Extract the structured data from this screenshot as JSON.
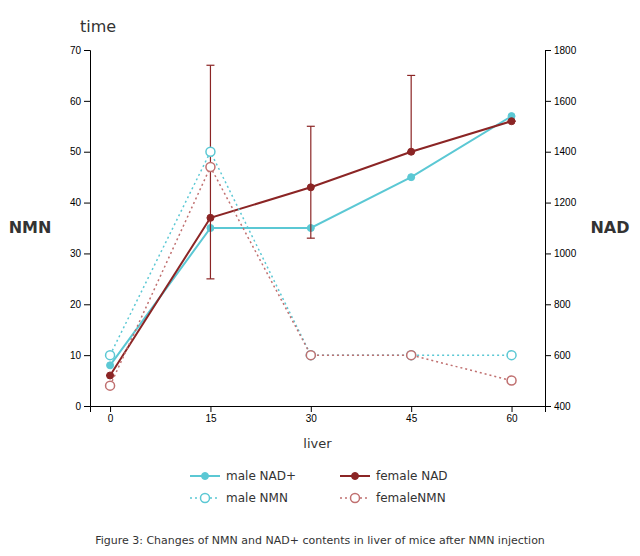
{
  "chart_data": {
    "type": "line",
    "title": "time",
    "xlabel": "liver",
    "ylabel": "NMN",
    "y2label": "NAD",
    "caption": "Figure 3: Changes of NMN and NAD+ contents in liver of mice after NMN injection",
    "x": [
      0,
      15,
      30,
      45,
      60
    ],
    "xlim": [
      -3,
      65
    ],
    "xticks": [
      0,
      15,
      30,
      45,
      60
    ],
    "ylim": [
      0,
      70
    ],
    "yticks": [
      0,
      10,
      20,
      30,
      40,
      50,
      60,
      70
    ],
    "y2lim": [
      400,
      1800
    ],
    "y2ticks": [
      400,
      600,
      800,
      1000,
      1200,
      1400,
      1600,
      1800
    ],
    "grid": false,
    "legend": "bottom",
    "series": [
      {
        "name": "male NAD+",
        "color": "#5BC8D4",
        "marker": "circle",
        "line_style": "solid",
        "values": [
          8,
          35,
          35,
          45,
          57
        ]
      },
      {
        "name": "female NAD",
        "color": "#8B2525",
        "marker": "circle",
        "line_style": "solid",
        "values": [
          6,
          37,
          43,
          50,
          56
        ],
        "error_up": [
          0,
          30,
          12,
          15,
          0
        ],
        "error_down": [
          0,
          12,
          10,
          0,
          0
        ]
      },
      {
        "name": "male NMN",
        "color": "#5BC8D4",
        "marker": "circle-open",
        "line_style": "dotted",
        "values": [
          10,
          50,
          10,
          10,
          10
        ]
      },
      {
        "name": "femaleNMN",
        "color": "#C07070",
        "marker": "circle-open",
        "line_style": "dotted",
        "values": [
          4,
          47,
          10,
          10,
          5
        ]
      }
    ]
  }
}
